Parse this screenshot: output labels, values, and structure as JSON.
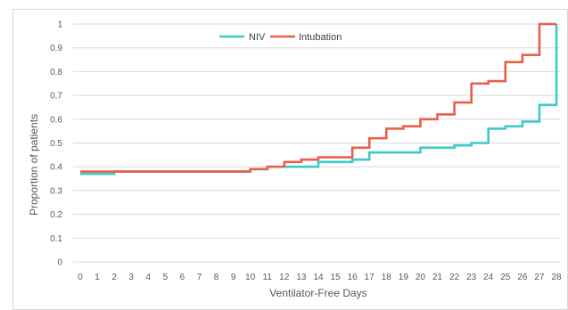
{
  "chart_data": {
    "type": "line",
    "step": true,
    "title": "",
    "xlabel": "Ventilator-Free Days",
    "ylabel": "Proportion of patients",
    "xlim": [
      0,
      28
    ],
    "ylim": [
      0,
      1
    ],
    "x_ticks": [
      0,
      1,
      2,
      3,
      4,
      5,
      6,
      7,
      8,
      9,
      10,
      11,
      12,
      13,
      14,
      15,
      16,
      17,
      18,
      19,
      20,
      21,
      22,
      23,
      24,
      25,
      26,
      27,
      28
    ],
    "y_ticks": [
      0,
      0.1,
      0.2,
      0.3,
      0.4,
      0.5,
      0.6,
      0.7,
      0.8,
      0.9,
      1
    ],
    "grid": "horizontal",
    "legend_position": "top-left",
    "series": [
      {
        "name": "NIV",
        "color": "#3fc9c9",
        "x": [
          0,
          1,
          2,
          3,
          4,
          5,
          6,
          7,
          8,
          9,
          10,
          11,
          12,
          13,
          14,
          15,
          16,
          17,
          18,
          19,
          20,
          21,
          22,
          23,
          24,
          25,
          26,
          27,
          28
        ],
        "values": [
          0.37,
          0.37,
          0.38,
          0.38,
          0.38,
          0.38,
          0.38,
          0.38,
          0.38,
          0.38,
          0.39,
          0.4,
          0.4,
          0.4,
          0.42,
          0.42,
          0.43,
          0.46,
          0.46,
          0.46,
          0.48,
          0.48,
          0.49,
          0.5,
          0.56,
          0.57,
          0.59,
          0.66,
          1.0
        ]
      },
      {
        "name": "Intubation",
        "color": "#e8604c",
        "x": [
          0,
          1,
          2,
          3,
          4,
          5,
          6,
          7,
          8,
          9,
          10,
          11,
          12,
          13,
          14,
          15,
          16,
          17,
          18,
          19,
          20,
          21,
          22,
          23,
          24,
          25,
          26,
          27,
          28
        ],
        "values": [
          0.38,
          0.38,
          0.38,
          0.38,
          0.38,
          0.38,
          0.38,
          0.38,
          0.38,
          0.38,
          0.39,
          0.4,
          0.42,
          0.43,
          0.44,
          0.44,
          0.48,
          0.52,
          0.56,
          0.57,
          0.6,
          0.62,
          0.67,
          0.75,
          0.76,
          0.84,
          0.87,
          1.0,
          1.0
        ]
      }
    ]
  }
}
